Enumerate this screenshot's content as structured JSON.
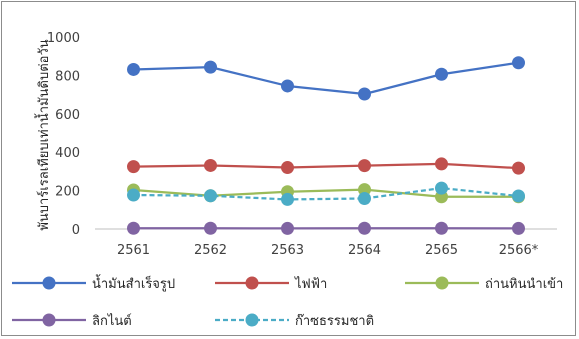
{
  "chart_data": {
    "type": "line",
    "title": "",
    "xlabel": "",
    "ylabel": "พันบาร์เรลเทียบเท่าน้ำมันดิบต่อวัน",
    "categories": [
      "2561",
      "2562",
      "2563",
      "2564",
      "2565",
      "2566*"
    ],
    "ylim": [
      0,
      1000
    ],
    "yticks": [
      "0",
      "200",
      "400",
      "600",
      "800",
      "1000"
    ],
    "grid": false,
    "legend_position": "bottom",
    "series": [
      {
        "name": "น้ำมันสำเร็จรูป",
        "values": [
          831,
          843,
          745,
          703,
          806,
          866
        ],
        "color": "#4472C4",
        "dashed": false
      },
      {
        "name": "ไฟฟ้า",
        "values": [
          325,
          331,
          320,
          330,
          339,
          317
        ],
        "color": "#C0504D",
        "dashed": false
      },
      {
        "name": "ถ่านหินนำเข้า",
        "values": [
          203,
          173,
          194,
          205,
          168,
          168
        ],
        "color": "#9BBB59",
        "dashed": false
      },
      {
        "name": "ลิกไนต์",
        "values": [
          4,
          4,
          3,
          4,
          4,
          3
        ],
        "color": "#8064A2",
        "dashed": false
      },
      {
        "name": "ก๊าซธรรมชาติ",
        "values": [
          177,
          173,
          154,
          159,
          213,
          172
        ],
        "color": "#4BACC6",
        "dashed": true
      }
    ]
  }
}
